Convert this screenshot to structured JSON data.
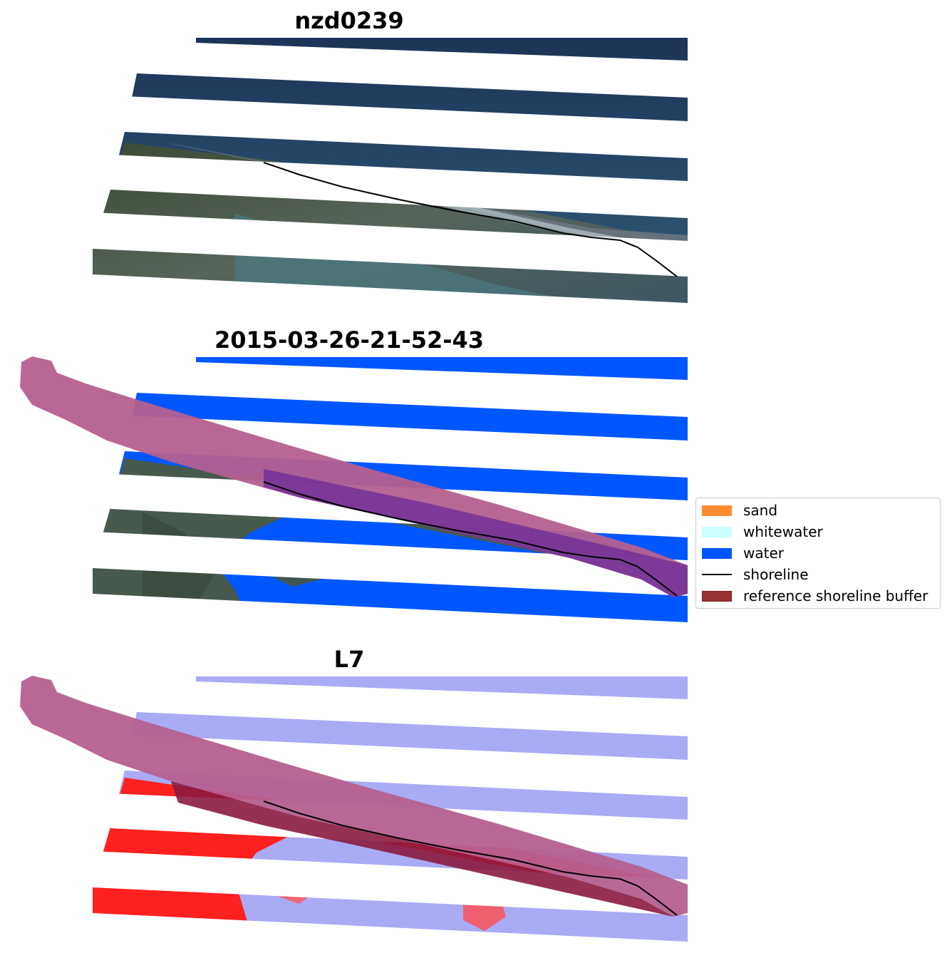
{
  "panels": [
    {
      "title": "nzd0239"
    },
    {
      "title": "2015-03-26-21-52-43"
    },
    {
      "title": "L7"
    }
  ],
  "legend": {
    "items": [
      {
        "label": "sand",
        "kind": "patch",
        "color": "#ff8c33"
      },
      {
        "label": "whitewater",
        "kind": "patch",
        "color": "#ccffff"
      },
      {
        "label": "water",
        "kind": "patch",
        "color": "#0055ff"
      },
      {
        "label": "shoreline",
        "kind": "line",
        "color": "#000000"
      },
      {
        "label": "reference shoreline buffer",
        "kind": "patch",
        "color": "#993333"
      }
    ]
  },
  "colors": {
    "water_rgb": "#1f3f5f",
    "land_rgb": "#3f4f3a",
    "class_water": "#0055ff",
    "buffer": "#b5608f",
    "buffer_dark": "#7a1b4f",
    "index_low": "#aaaaff",
    "index_high": "#ff2222"
  }
}
